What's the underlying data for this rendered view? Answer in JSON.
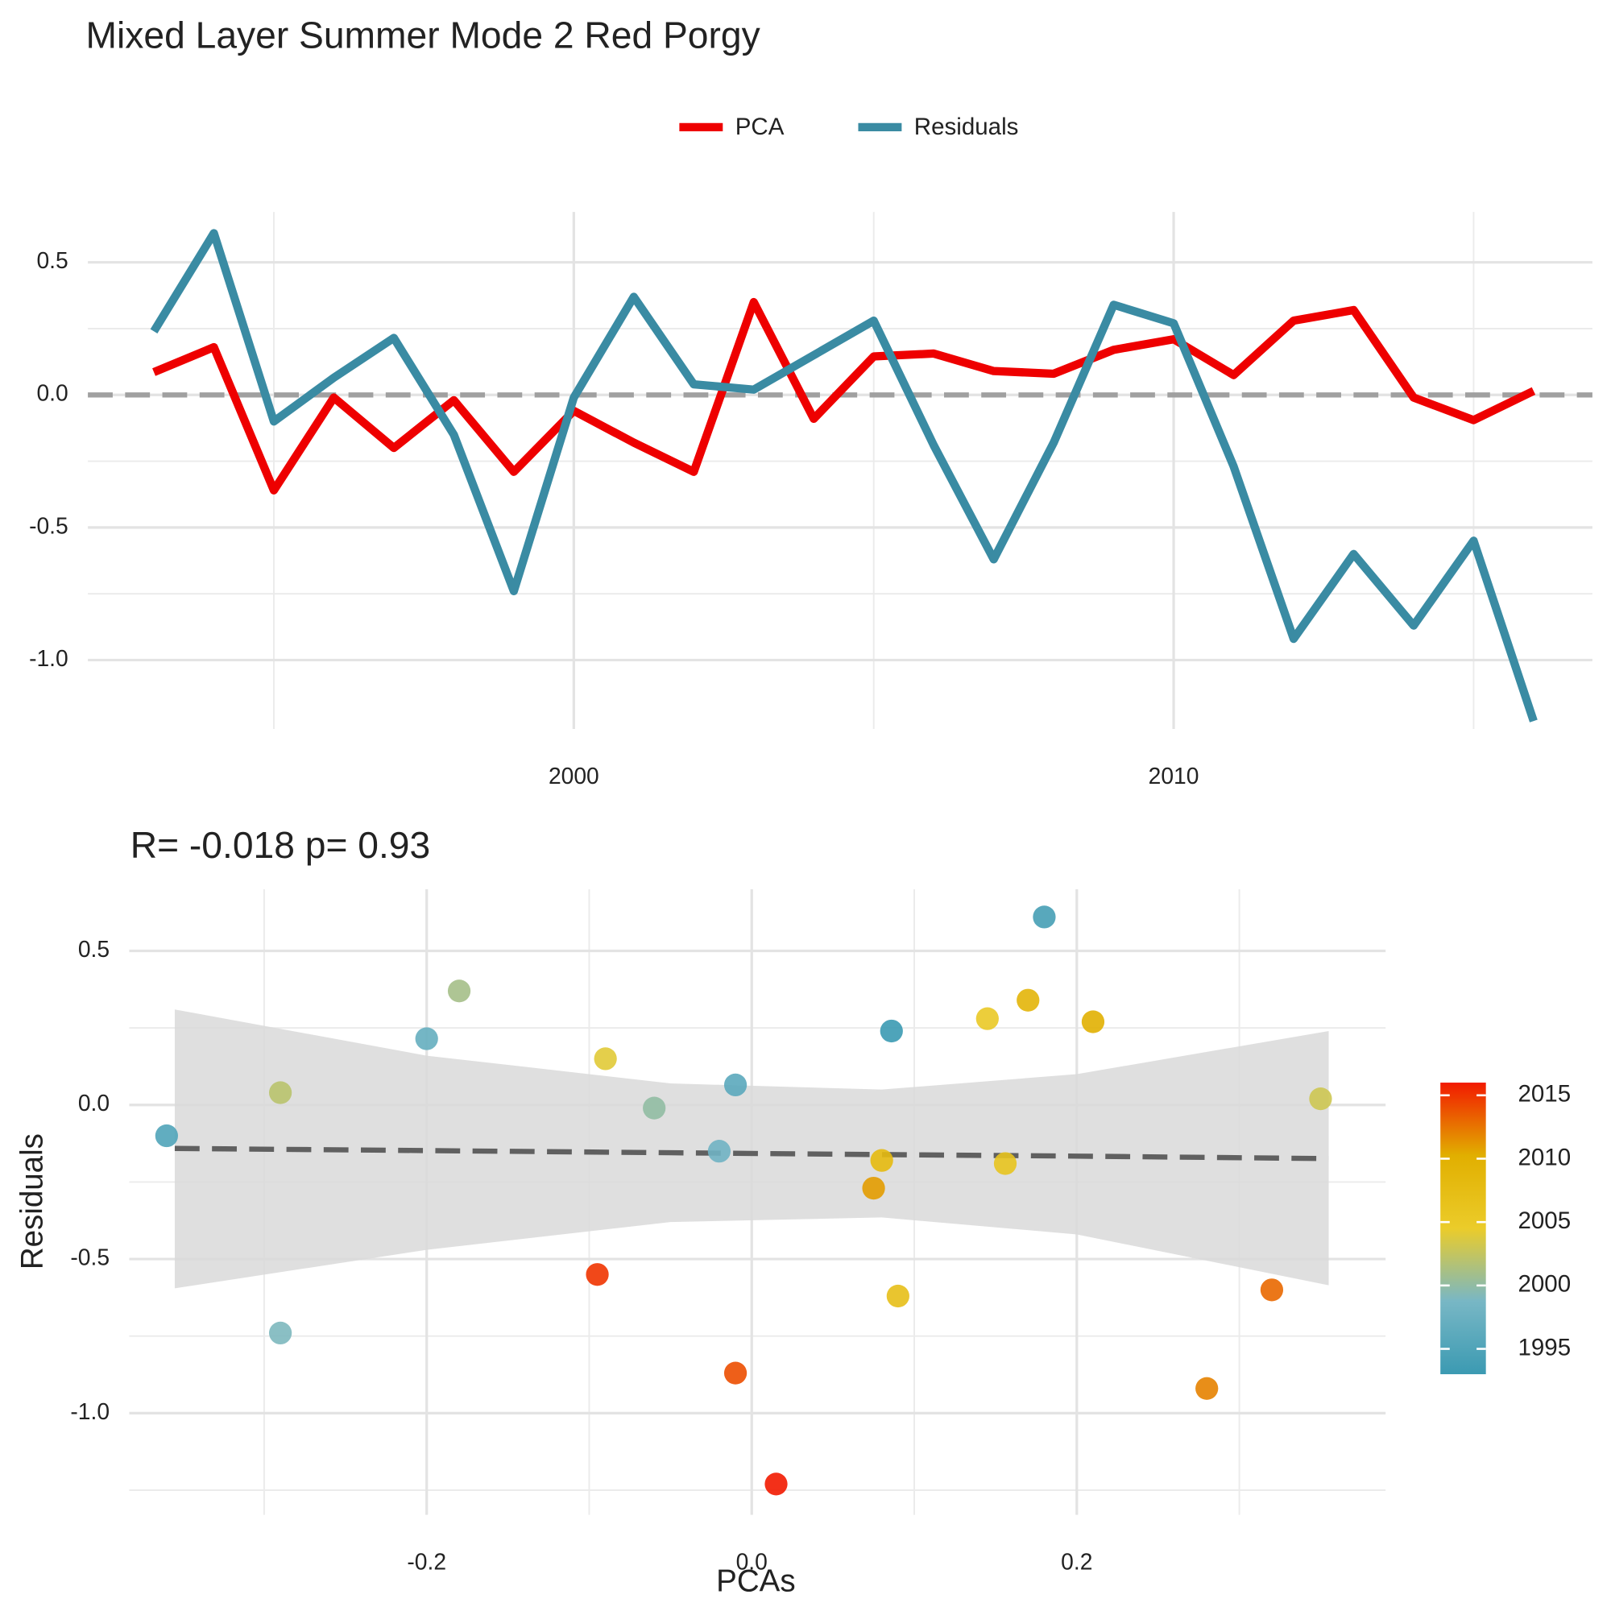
{
  "title": "Mixed Layer Summer Mode 2  Red Porgy",
  "chart_data": [
    {
      "type": "line",
      "x": [
        1993,
        1994,
        1995,
        1996,
        1997,
        1998,
        1999,
        2000,
        2001,
        2002,
        2003,
        2004,
        2005,
        2006,
        2007,
        2008,
        2009,
        2010,
        2011,
        2012,
        2013,
        2014,
        2015,
        2016
      ],
      "series": [
        {
          "name": "PCA",
          "color": "#ee0000",
          "values": [
            0.086,
            0.18,
            -0.36,
            -0.01,
            -0.2,
            -0.02,
            -0.29,
            -0.06,
            -0.18,
            -0.29,
            0.35,
            -0.09,
            0.145,
            0.156,
            0.09,
            0.08,
            0.17,
            0.21,
            0.075,
            0.28,
            0.32,
            -0.01,
            -0.095,
            0.015
          ]
        },
        {
          "name": "Residuals",
          "color": "#3a8ba3",
          "values": [
            0.24,
            0.61,
            -0.1,
            0.065,
            0.215,
            -0.15,
            -0.74,
            -0.01,
            0.37,
            0.04,
            0.02,
            0.15,
            0.28,
            -0.19,
            -0.62,
            -0.18,
            0.34,
            0.27,
            -0.27,
            -0.92,
            -0.6,
            -0.87,
            -0.55,
            -1.23
          ]
        }
      ],
      "xlim": [
        1991.9,
        2016.98
      ],
      "xticks": [
        2000,
        2010
      ],
      "xminor": [
        1995,
        2005,
        2015
      ],
      "ylim": [
        -1.26,
        0.69
      ],
      "yticks": [
        {
          "value": 0.5,
          "label": "0.5"
        },
        {
          "value": 0,
          "label": "0.0"
        },
        {
          "value": -0.5,
          "label": "-0.5"
        },
        {
          "value": -1,
          "label": "-1.0"
        }
      ],
      "yminor": [
        0.25,
        -0.25,
        -0.75
      ],
      "hline": 0,
      "grid": true,
      "legend": "top"
    },
    {
      "type": "scatter",
      "subtitle": "R= -0.018  p= 0.93",
      "xlabel": "PCAs",
      "ylabel": "Residuals",
      "x": [
        0.086,
        0.18,
        -0.36,
        -0.01,
        -0.2,
        -0.02,
        -0.29,
        -0.06,
        -0.18,
        -0.29,
        0.35,
        -0.09,
        0.145,
        0.156,
        0.09,
        0.08,
        0.17,
        0.21,
        0.075,
        0.28,
        0.32,
        -0.01,
        -0.095,
        0.015
      ],
      "y": [
        0.24,
        0.61,
        -0.1,
        0.065,
        0.215,
        -0.15,
        -0.74,
        -0.01,
        0.37,
        0.04,
        0.02,
        0.15,
        0.28,
        -0.19,
        -0.62,
        -0.18,
        0.34,
        0.27,
        -0.27,
        -0.92,
        -0.6,
        -0.87,
        -0.55,
        -1.23
      ],
      "years": [
        1993,
        1994,
        1995,
        1996,
        1997,
        1998,
        1999,
        2000,
        2001,
        2002,
        2003,
        2004,
        2005,
        2006,
        2007,
        2008,
        2009,
        2010,
        2011,
        2012,
        2013,
        2014,
        2015,
        2016
      ],
      "fit": {
        "x": [
          -0.355,
          -0.2,
          -0.05,
          0.08,
          0.2,
          0.355
        ],
        "y": [
          -0.141,
          -0.148,
          -0.155,
          -0.161,
          -0.166,
          -0.174
        ],
        "upper": [
          0.31,
          0.16,
          0.07,
          0.05,
          0.1,
          0.24
        ],
        "lower": [
          -0.595,
          -0.47,
          -0.38,
          -0.365,
          -0.42,
          -0.585
        ]
      },
      "xlim": [
        -0.383,
        0.39
      ],
      "xticks": [
        {
          "value": -0.2,
          "label": "-0.2"
        },
        {
          "value": 0,
          "label": "0.0"
        },
        {
          "value": 0.2,
          "label": "0.2"
        }
      ],
      "xminor": [
        -0.3,
        -0.1,
        0.1,
        0.3
      ],
      "ylim": [
        -1.33,
        0.7
      ],
      "yticks": [
        {
          "value": 0.5,
          "label": "0.5"
        },
        {
          "value": 0,
          "label": "0.0"
        },
        {
          "value": -0.5,
          "label": "-0.5"
        },
        {
          "value": -1,
          "label": "-1.0"
        }
      ],
      "yminor": [
        0.25,
        -0.25,
        -0.75,
        -1.25
      ],
      "grid": true,
      "colorbar": {
        "lim": [
          1993,
          2016
        ],
        "ticks": [
          1995,
          2000,
          2005,
          2010,
          2015
        ],
        "colors": [
          "#3B9AB2",
          "#78B7C5",
          "#EBCC2A",
          "#E1AF00",
          "#F21A00"
        ]
      }
    }
  ]
}
